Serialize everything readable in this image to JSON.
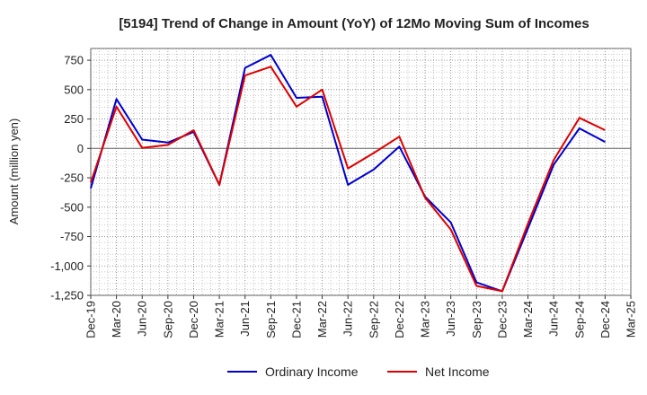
{
  "chart_data": {
    "type": "line",
    "title": "[5194]  Trend of Change in Amount (YoY) of 12Mo Moving Sum of Incomes",
    "xlabel": "",
    "ylabel": "Amount (million yen)",
    "ylim": [
      -1250,
      850
    ],
    "yticks": [
      750,
      500,
      250,
      0,
      -250,
      -500,
      -750,
      -1000,
      -1250
    ],
    "ytick_labels": [
      "750",
      "500",
      "250",
      "0",
      "-250",
      "-500",
      "-750",
      "-1,000",
      "-1,250"
    ],
    "x_labels": [
      "Dec-19",
      "Mar-20",
      "Jun-20",
      "Sep-20",
      "Dec-20",
      "Mar-21",
      "Jun-21",
      "Sep-21",
      "Dec-21",
      "Mar-22",
      "Jun-22",
      "Sep-22",
      "Dec-22",
      "Mar-23",
      "Jun-23",
      "Sep-23",
      "Dec-23",
      "Mar-24",
      "Jun-24",
      "Sep-24",
      "Dec-24",
      "Mar-25"
    ],
    "grid": true,
    "legend_position": "bottom",
    "series": [
      {
        "name": "Ordinary Income",
        "color": "#0000cc",
        "values": [
          -340,
          420,
          75,
          50,
          140,
          -310,
          685,
          795,
          430,
          440,
          -310,
          -180,
          15,
          -410,
          -630,
          -1140,
          -1215,
          -680,
          -140,
          170,
          55,
          null
        ]
      },
      {
        "name": "Net Income",
        "color": "#dd0000",
        "values": [
          -290,
          355,
          5,
          30,
          155,
          -310,
          620,
          695,
          355,
          500,
          -170,
          -40,
          100,
          -420,
          -690,
          -1170,
          -1215,
          -640,
          -100,
          260,
          155,
          null
        ]
      }
    ]
  }
}
